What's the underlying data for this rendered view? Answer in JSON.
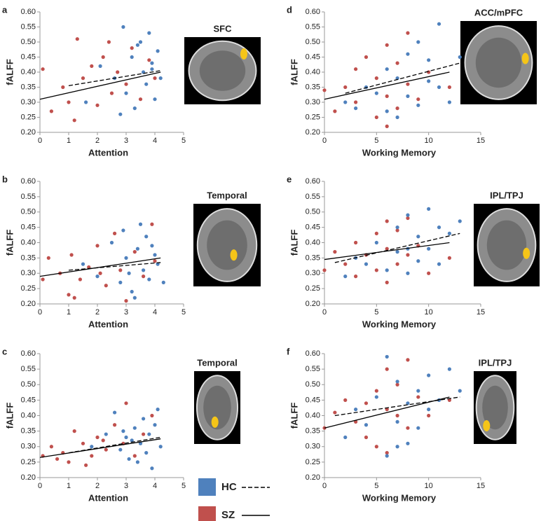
{
  "chart_data": [
    {
      "type": "scatter",
      "panel": "a",
      "image_label": "SFC",
      "xlabel": "Attention",
      "ylabel": "fALFF",
      "xlim": [
        0,
        5
      ],
      "xticks": [
        0,
        1,
        2,
        3,
        4,
        5
      ],
      "ylim": [
        0.2,
        0.6
      ],
      "yticks": [
        {
          "value": 0.2,
          "label": "0.20"
        },
        0.25,
        {
          "value": 0.3,
          "label": "0.30"
        },
        0.35,
        {
          "value": 0.4,
          "label": "0.40"
        },
        0.45,
        {
          "value": 0.5,
          "label": "0.50"
        },
        0.55,
        {
          "value": 0.6,
          "label": "0.60"
        }
      ],
      "series": [
        {
          "color": "#c0504d",
          "x": [
            0.1,
            0.4,
            0.8,
            1.0,
            1.3,
            1.5,
            1.8,
            2.0,
            2.2,
            2.5,
            2.7,
            3.0,
            3.2,
            3.5,
            3.8,
            4.0,
            1.2,
            2.4
          ],
          "values": [
            0.41,
            0.27,
            0.35,
            0.3,
            0.51,
            0.38,
            0.42,
            0.29,
            0.45,
            0.33,
            0.4,
            0.36,
            0.48,
            0.31,
            0.44,
            0.38,
            0.24,
            0.5
          ],
          "fit": {
            "line_style": "solid",
            "x": [
              0,
              4.2
            ],
            "values": [
              0.31,
              0.4
            ]
          }
        },
        {
          "color": "#4f81bd",
          "x": [
            1.6,
            2.1,
            2.6,
            2.9,
            3.0,
            3.2,
            3.3,
            3.5,
            3.6,
            3.7,
            3.8,
            3.9,
            4.0,
            4.1,
            4.2,
            2.8,
            3.4,
            3.9
          ],
          "values": [
            0.3,
            0.42,
            0.38,
            0.55,
            0.33,
            0.45,
            0.28,
            0.5,
            0.4,
            0.36,
            0.53,
            0.43,
            0.31,
            0.47,
            0.38,
            0.26,
            0.49,
            0.41
          ],
          "fit": {
            "line_style": "dashed",
            "x": [
              1.0,
              4.2
            ],
            "values": [
              0.355,
              0.405
            ]
          }
        }
      ]
    },
    {
      "type": "scatter",
      "panel": "b",
      "image_label": "Temporal",
      "xlabel": "Attention",
      "ylabel": "fALFF",
      "xlim": [
        0,
        5
      ],
      "xticks": [
        0,
        1,
        2,
        3,
        4,
        5
      ],
      "ylim": [
        0.2,
        0.6
      ],
      "yticks": [
        {
          "value": 0.2,
          "label": "0.20"
        },
        0.25,
        {
          "value": 0.3,
          "label": "0.30"
        },
        0.35,
        {
          "value": 0.4,
          "label": "0.40"
        },
        0.45,
        {
          "value": 0.5,
          "label": "0.50"
        },
        0.55,
        {
          "value": 0.6,
          "label": "0.60"
        }
      ],
      "series": [
        {
          "color": "#c0504d",
          "x": [
            0.1,
            0.3,
            0.7,
            1.0,
            1.1,
            1.4,
            1.7,
            2.0,
            2.3,
            2.6,
            2.8,
            3.0,
            3.3,
            3.6,
            3.9,
            4.0,
            2.1,
            1.2
          ],
          "values": [
            0.28,
            0.35,
            0.3,
            0.23,
            0.36,
            0.28,
            0.32,
            0.39,
            0.26,
            0.43,
            0.31,
            0.21,
            0.37,
            0.29,
            0.46,
            0.34,
            0.3,
            0.22
          ],
          "fit": {
            "line_style": "solid",
            "x": [
              0,
              4.2
            ],
            "values": [
              0.29,
              0.35
            ]
          }
        },
        {
          "color": "#4f81bd",
          "x": [
            1.5,
            2.0,
            2.5,
            2.8,
            3.0,
            3.2,
            3.4,
            3.5,
            3.6,
            3.7,
            3.8,
            4.0,
            4.1,
            4.3,
            3.3,
            2.9,
            3.9,
            3.1
          ],
          "values": [
            0.33,
            0.29,
            0.4,
            0.27,
            0.35,
            0.24,
            0.38,
            0.46,
            0.31,
            0.42,
            0.28,
            0.36,
            0.33,
            0.27,
            0.22,
            0.44,
            0.39,
            0.3
          ],
          "fit": {
            "line_style": "dashed",
            "x": [
              1.0,
              4.2
            ],
            "values": [
              0.31,
              0.335
            ]
          }
        }
      ]
    },
    {
      "type": "scatter",
      "panel": "c",
      "image_label": "Temporal",
      "xlabel": "Attention",
      "ylabel": "fALFF",
      "xlim": [
        0,
        5
      ],
      "xticks": [
        0,
        1,
        2,
        3,
        4,
        5
      ],
      "ylim": [
        0.2,
        0.6
      ],
      "yticks": [
        {
          "value": 0.2,
          "label": "0.20"
        },
        0.25,
        {
          "value": 0.3,
          "label": "0.30"
        },
        0.35,
        {
          "value": 0.4,
          "label": "0.40"
        },
        0.45,
        {
          "value": 0.5,
          "label": "0.50"
        },
        0.55,
        {
          "value": 0.6,
          "label": "0.60"
        }
      ],
      "series": [
        {
          "color": "#c0504d",
          "x": [
            0.1,
            0.4,
            0.8,
            1.0,
            1.2,
            1.5,
            1.8,
            2.0,
            2.3,
            2.6,
            2.9,
            3.0,
            3.3,
            3.6,
            3.9,
            0.6,
            1.6,
            2.2
          ],
          "values": [
            0.27,
            0.3,
            0.28,
            0.25,
            0.35,
            0.31,
            0.27,
            0.33,
            0.29,
            0.37,
            0.31,
            0.44,
            0.27,
            0.34,
            0.4,
            0.26,
            0.24,
            0.32
          ],
          "fit": {
            "line_style": "solid",
            "x": [
              0,
              4.2
            ],
            "values": [
              0.265,
              0.325
            ]
          }
        },
        {
          "color": "#4f81bd",
          "x": [
            1.8,
            2.3,
            2.6,
            2.8,
            3.0,
            3.1,
            3.3,
            3.5,
            3.6,
            3.7,
            3.8,
            3.9,
            4.0,
            4.2,
            3.4,
            2.9,
            4.1,
            3.2
          ],
          "values": [
            0.3,
            0.34,
            0.41,
            0.29,
            0.33,
            0.26,
            0.36,
            0.31,
            0.39,
            0.28,
            0.34,
            0.23,
            0.37,
            0.3,
            0.25,
            0.35,
            0.42,
            0.32
          ],
          "fit": {
            "line_style": "dashed",
            "x": [
              1.0,
              4.2
            ],
            "values": [
              0.28,
              0.33
            ]
          }
        }
      ]
    },
    {
      "type": "scatter",
      "panel": "d",
      "image_label": "ACC/mPFC",
      "xlabel": "Working Memory",
      "ylabel": "fALFF",
      "xlim": [
        0,
        15
      ],
      "xticks": [
        0,
        5,
        10,
        15
      ],
      "ylim": [
        0.2,
        0.6
      ],
      "yticks": [
        {
          "value": 0.2,
          "label": "0.20"
        },
        0.25,
        {
          "value": 0.3,
          "label": "0.30"
        },
        0.35,
        {
          "value": 0.4,
          "label": "0.40"
        },
        0.45,
        {
          "value": 0.5,
          "label": "0.50"
        },
        0.55,
        {
          "value": 0.6,
          "label": "0.60"
        }
      ],
      "series": [
        {
          "color": "#c0504d",
          "x": [
            0,
            1,
            2,
            3,
            3,
            4,
            5,
            5,
            6,
            6,
            6,
            7,
            7,
            8,
            8,
            9,
            10,
            12
          ],
          "values": [
            0.34,
            0.27,
            0.35,
            0.41,
            0.3,
            0.45,
            0.25,
            0.38,
            0.22,
            0.32,
            0.49,
            0.28,
            0.43,
            0.36,
            0.53,
            0.31,
            0.4,
            0.35
          ],
          "fit": {
            "line_style": "solid",
            "x": [
              0,
              12
            ],
            "values": [
              0.31,
              0.4
            ]
          }
        },
        {
          "color": "#4f81bd",
          "x": [
            2,
            3,
            4,
            5,
            6,
            7,
            7,
            8,
            8,
            9,
            9,
            10,
            10,
            11,
            11,
            12,
            13,
            6
          ],
          "values": [
            0.3,
            0.28,
            0.35,
            0.33,
            0.41,
            0.25,
            0.38,
            0.46,
            0.32,
            0.29,
            0.5,
            0.37,
            0.44,
            0.56,
            0.35,
            0.3,
            0.45,
            0.27
          ],
          "fit": {
            "line_style": "dashed",
            "x": [
              2,
              13
            ],
            "values": [
              0.33,
              0.43
            ]
          }
        }
      ]
    },
    {
      "type": "scatter",
      "panel": "e",
      "image_label": "IPL/TPJ",
      "xlabel": "Working Memory",
      "ylabel": "fALFF",
      "xlim": [
        0,
        15
      ],
      "xticks": [
        0,
        5,
        10,
        15
      ],
      "ylim": [
        0.2,
        0.6
      ],
      "yticks": [
        {
          "value": 0.2,
          "label": "0.20"
        },
        0.25,
        {
          "value": 0.3,
          "label": "0.30"
        },
        0.35,
        {
          "value": 0.4,
          "label": "0.40"
        },
        0.45,
        {
          "value": 0.5,
          "label": "0.50"
        },
        0.55,
        {
          "value": 0.6,
          "label": "0.60"
        }
      ],
      "series": [
        {
          "color": "#c0504d",
          "x": [
            0,
            1,
            2,
            3,
            3,
            4,
            5,
            5,
            6,
            6,
            6,
            7,
            7,
            8,
            8,
            9,
            10,
            12
          ],
          "values": [
            0.31,
            0.37,
            0.33,
            0.29,
            0.4,
            0.36,
            0.43,
            0.31,
            0.27,
            0.38,
            0.47,
            0.33,
            0.44,
            0.36,
            0.48,
            0.39,
            0.3,
            0.35
          ],
          "fit": {
            "line_style": "solid",
            "x": [
              0,
              12
            ],
            "values": [
              0.345,
              0.4
            ]
          }
        },
        {
          "color": "#4f81bd",
          "x": [
            2,
            3,
            4,
            5,
            6,
            7,
            7,
            8,
            8,
            9,
            9,
            10,
            10,
            11,
            11,
            12,
            13,
            8
          ],
          "values": [
            0.29,
            0.35,
            0.33,
            0.4,
            0.31,
            0.37,
            0.45,
            0.3,
            0.49,
            0.34,
            0.42,
            0.51,
            0.38,
            0.45,
            0.33,
            0.43,
            0.47,
            0.38
          ],
          "fit": {
            "line_style": "dashed",
            "x": [
              1,
              13
            ],
            "values": [
              0.335,
              0.43
            ]
          }
        }
      ]
    },
    {
      "type": "scatter",
      "panel": "f",
      "image_label": "IPL/TPJ",
      "xlabel": "Working Memory",
      "ylabel": "fALFF",
      "xlim": [
        0,
        15
      ],
      "xticks": [
        0,
        5,
        10,
        15
      ],
      "ylim": [
        0.2,
        0.6
      ],
      "yticks": [
        {
          "value": 0.2,
          "label": "0.20"
        },
        0.25,
        {
          "value": 0.3,
          "label": "0.30"
        },
        0.35,
        {
          "value": 0.4,
          "label": "0.40"
        },
        0.45,
        {
          "value": 0.5,
          "label": "0.50"
        },
        0.55,
        {
          "value": 0.6,
          "label": "0.60"
        }
      ],
      "series": [
        {
          "color": "#c0504d",
          "x": [
            0,
            1,
            2,
            3,
            4,
            4,
            5,
            5,
            6,
            6,
            7,
            7,
            8,
            8,
            9,
            10,
            12,
            6
          ],
          "values": [
            0.36,
            0.41,
            0.45,
            0.38,
            0.33,
            0.44,
            0.3,
            0.48,
            0.28,
            0.55,
            0.4,
            0.5,
            0.36,
            0.58,
            0.46,
            0.4,
            0.45,
            0.42
          ],
          "fit": {
            "line_style": "solid",
            "x": [
              0,
              12
            ],
            "values": [
              0.36,
              0.46
            ]
          }
        },
        {
          "color": "#4f81bd",
          "x": [
            2,
            3,
            4,
            5,
            6,
            6,
            7,
            7,
            8,
            8,
            9,
            9,
            10,
            10,
            11,
            12,
            13,
            7
          ],
          "values": [
            0.33,
            0.42,
            0.37,
            0.46,
            0.27,
            0.59,
            0.38,
            0.51,
            0.31,
            0.44,
            0.48,
            0.36,
            0.53,
            0.42,
            0.45,
            0.55,
            0.48,
            0.3
          ],
          "fit": {
            "line_style": "dashed",
            "x": [
              1,
              13
            ],
            "values": [
              0.4,
              0.46
            ]
          }
        }
      ]
    }
  ],
  "legend": [
    {
      "name": "HC",
      "color": "#4f81bd",
      "line_style": "dashed"
    },
    {
      "name": "SZ",
      "color": "#c0504d",
      "line_style": "solid"
    }
  ]
}
